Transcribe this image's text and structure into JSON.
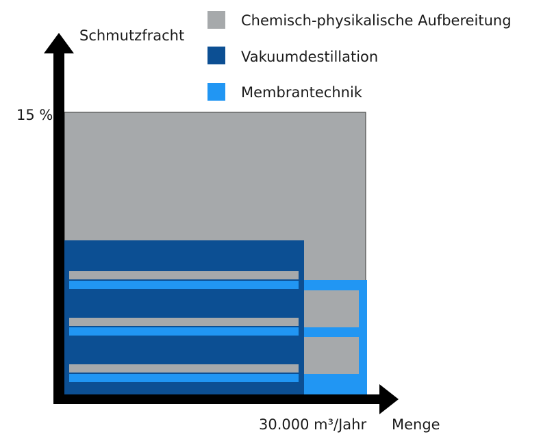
{
  "axes": {
    "y_label": "Schmutzfracht",
    "y_tick": "15 %",
    "x_tick": "30.000 m³/Jahr",
    "x_label": "Menge"
  },
  "legend": [
    {
      "label": "Chemisch-physikalische Aufbereitung",
      "color": "#a6a9ab"
    },
    {
      "label": "Vakuumdestillation",
      "color": "#0c4f93"
    },
    {
      "label": "Membrantechnik",
      "color": "#2196f3"
    }
  ],
  "colors": {
    "axis": "#000000",
    "outline": "#3a3a3a"
  }
}
